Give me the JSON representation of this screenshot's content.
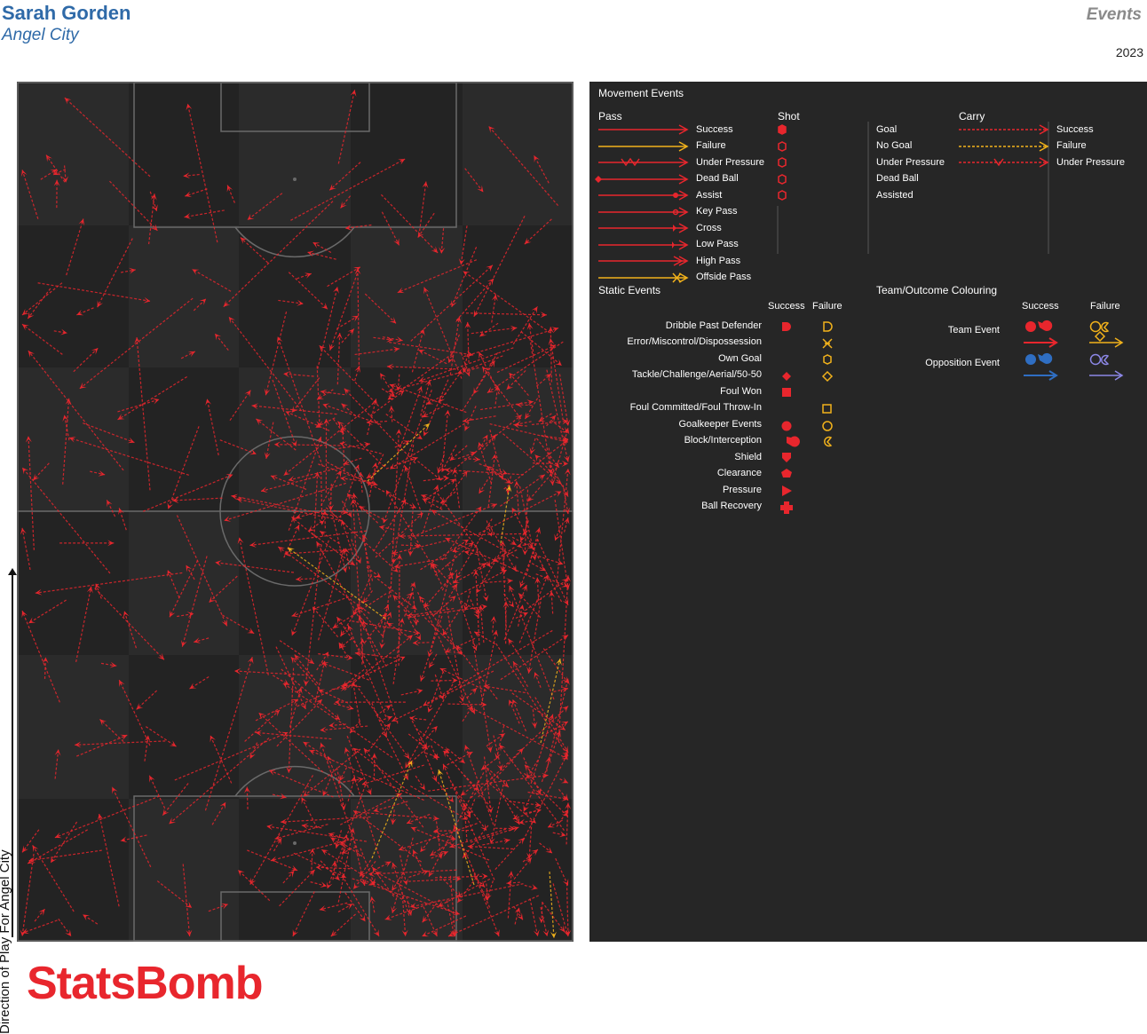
{
  "header": {
    "player_name": "Sarah Gorden",
    "team_name": "Angel City",
    "section_title": "Events",
    "season": "2023"
  },
  "pitch": {
    "direction_label": "Direction of Play For Angel City",
    "colors": {
      "background": "#2b2b2b",
      "stripe": "#232323",
      "lines": "#6a6a6a",
      "success": "#e8262d",
      "failure": "#f2b21b"
    }
  },
  "legend": {
    "movement_title": "Movement Events",
    "pass_title": "Pass",
    "pass_items": [
      "Success",
      "Failure",
      "Under Pressure",
      "Dead Ball",
      "Assist",
      "Key Pass",
      "Cross",
      "Low Pass",
      "High Pass",
      "Offside Pass"
    ],
    "shot_title": "Shot",
    "shot_items": [
      "Goal",
      "No Goal",
      "Under Pressure",
      "Dead Ball",
      "Assisted"
    ],
    "carry_title": "Carry",
    "carry_items": [
      "Success",
      "Failure",
      "Under Pressure"
    ],
    "static_title": "Static Events",
    "static_success_header": "Success",
    "static_failure_header": "Failure",
    "static_items": [
      "Dribble Past Defender",
      "Error/Miscontrol/Dispossession",
      "Own Goal",
      "Tackle/Challenge/Aerial/50-50",
      "Foul Won",
      "Foul Committed/Foul Throw-In",
      "Goalkeeper Events",
      "Block/Interception",
      "Shield",
      "Clearance",
      "Pressure",
      "Ball Recovery"
    ],
    "colouring_title": "Team/Outcome Colouring",
    "colouring_success_header": "Success",
    "colouring_failure_header": "Failure",
    "colouring_items": [
      "Team Event",
      "Opposition Event"
    ],
    "colors": {
      "team_success": "#e8262d",
      "team_failure": "#f2b21b",
      "opp_success": "#2f6ec2",
      "opp_failure": "#8c87e6"
    }
  },
  "brand": {
    "logo_text": "StatsBomb"
  }
}
